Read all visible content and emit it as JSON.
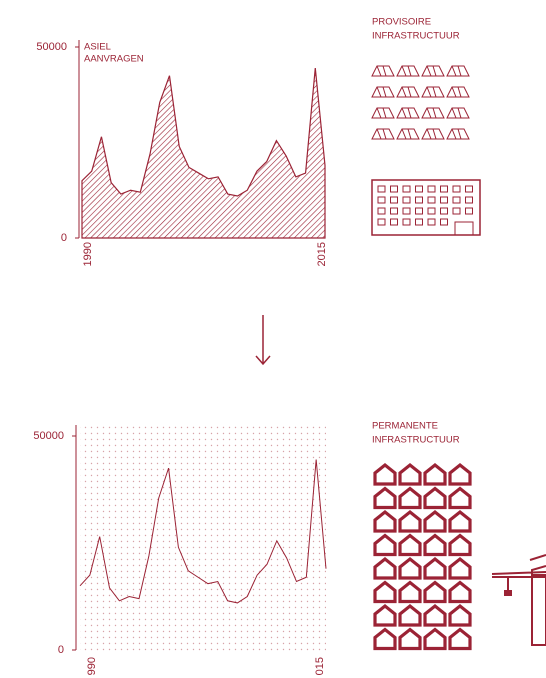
{
  "chart_data": [
    {
      "type": "area",
      "title": [
        "ASIEL",
        "AANVRAGEN"
      ],
      "color": "#9b2335",
      "x": [
        1990,
        1991,
        1992,
        1993,
        1994,
        1995,
        1996,
        1997,
        1998,
        1999,
        2000,
        2001,
        2002,
        2003,
        2004,
        2005,
        2006,
        2007,
        2008,
        2009,
        2010,
        2011,
        2012,
        2013,
        2014,
        2015
      ],
      "values": [
        15000,
        17500,
        26500,
        14500,
        11500,
        12500,
        12000,
        22000,
        35500,
        42500,
        24000,
        18500,
        17000,
        15500,
        16000,
        11500,
        11000,
        12500,
        17500,
        20000,
        25500,
        21500,
        16000,
        17000,
        44500,
        19000
      ],
      "xlim": [
        1990,
        2015
      ],
      "xticks": [
        1990,
        2015
      ],
      "ylim": [
        0,
        50000
      ],
      "yticks": [
        0,
        50000
      ]
    },
    {
      "type": "line",
      "color": "#9b2335",
      "x": [
        1990,
        1991,
        1992,
        1993,
        1994,
        1995,
        1996,
        1997,
        1998,
        1999,
        2000,
        2001,
        2002,
        2003,
        2004,
        2005,
        2006,
        2007,
        2008,
        2009,
        2010,
        2011,
        2012,
        2013,
        2014,
        2015
      ],
      "values": [
        15000,
        17500,
        26500,
        14500,
        11500,
        12500,
        12000,
        22000,
        35500,
        42500,
        24000,
        18500,
        17000,
        15500,
        16000,
        11500,
        11000,
        12500,
        17500,
        20000,
        25500,
        21500,
        16000,
        17000,
        44500,
        19000
      ],
      "xlim": [
        1990,
        2015
      ],
      "xticks": [
        {
          "value": 1990,
          "label": "990"
        },
        {
          "value": 2015,
          "label": "015"
        }
      ],
      "ylim": [
        0,
        50000
      ],
      "yticks": [
        0,
        50000
      ]
    }
  ],
  "provisional": [
    "PROVISOIRE",
    "INFRASTRUCTUUR"
  ],
  "permanent": [
    "PERMANENTE",
    "INFRASTRUCTUUR"
  ]
}
